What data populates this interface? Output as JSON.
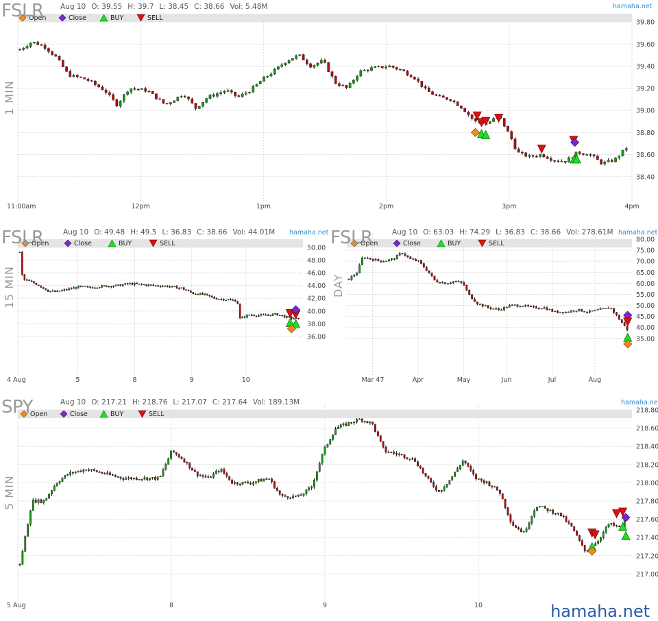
{
  "watermark": "hamaha.net",
  "legend": {
    "open": "Open",
    "close": "Close",
    "buy": "BUY",
    "sell": "SELL",
    "colors": {
      "open": "#f08c1e",
      "close": "#7a28c8",
      "buy": "#22dd22",
      "sell": "#dd1010"
    }
  },
  "panels": {
    "p1": {
      "symbol": "FSLR",
      "timeframe": "1 MIN",
      "brand": "hamaha.net",
      "ohlc": {
        "date": "Aug 10",
        "o": "O: 39.55",
        "h": "H: 39.7",
        "l": "L: 38.45",
        "c": "C: 38.66",
        "vol": "Vol: 5.48M"
      }
    },
    "p2": {
      "symbol": "FSLR",
      "timeframe": "15 MIN",
      "brand": "hamaha.net",
      "ohlc": {
        "date": "Aug 10",
        "o": "O: 49.48",
        "h": "H: 49.5",
        "l": "L: 36.83",
        "c": "C: 38.66",
        "vol": "Vol: 44.01M"
      }
    },
    "p3": {
      "symbol": "FSLR",
      "timeframe": "DAY",
      "brand": "hamaha.net",
      "ohlc": {
        "date": "Aug 10",
        "o": "O: 63.03",
        "h": "H: 74.29",
        "l": "L: 36.83",
        "c": "C: 38.66",
        "vol": "Vol: 278.61M"
      }
    },
    "p4": {
      "symbol": "SPY",
      "timeframe": "5 MIN",
      "brand": "hamaha.net",
      "ohlc": {
        "date": "Aug 10",
        "o": "O: 217.21",
        "h": "H: 218.76",
        "l": "L: 217.07",
        "c": "C: 217.64",
        "vol": "Vol: 189.13M"
      }
    }
  },
  "chart_data": [
    {
      "id": "p1",
      "type": "candlestick",
      "title": "FSLR 1 MIN",
      "ylim": [
        38.2,
        39.8
      ],
      "yticks": [
        "38.40",
        "38.60",
        "38.80",
        "39.00",
        "39.20",
        "39.40",
        "39.60",
        "39.80"
      ],
      "x_ticks": [
        "11:00am",
        "12pm",
        "1pm",
        "2pm",
        "3pm",
        "4pm"
      ],
      "grid": true,
      "path": [
        [
          0,
          39.55
        ],
        [
          0.02,
          39.62
        ],
        [
          0.04,
          39.58
        ],
        [
          0.06,
          39.48
        ],
        [
          0.08,
          39.32
        ],
        [
          0.11,
          39.28
        ],
        [
          0.14,
          39.18
        ],
        [
          0.16,
          39.05
        ],
        [
          0.18,
          39.2
        ],
        [
          0.21,
          39.18
        ],
        [
          0.24,
          39.05
        ],
        [
          0.27,
          39.15
        ],
        [
          0.29,
          39.02
        ],
        [
          0.31,
          39.12
        ],
        [
          0.34,
          39.18
        ],
        [
          0.36,
          39.12
        ],
        [
          0.38,
          39.18
        ],
        [
          0.4,
          39.28
        ],
        [
          0.42,
          39.36
        ],
        [
          0.44,
          39.45
        ],
        [
          0.46,
          39.5
        ],
        [
          0.48,
          39.4
        ],
        [
          0.5,
          39.45
        ],
        [
          0.52,
          39.25
        ],
        [
          0.54,
          39.2
        ],
        [
          0.56,
          39.35
        ],
        [
          0.58,
          39.38
        ],
        [
          0.61,
          39.4
        ],
        [
          0.63,
          39.36
        ],
        [
          0.65,
          39.3
        ],
        [
          0.67,
          39.18
        ],
        [
          0.69,
          39.12
        ],
        [
          0.71,
          39.1
        ],
        [
          0.73,
          39.02
        ],
        [
          0.75,
          38.9
        ],
        [
          0.77,
          38.88
        ],
        [
          0.79,
          38.95
        ],
        [
          0.81,
          38.75
        ],
        [
          0.82,
          38.62
        ],
        [
          0.84,
          38.58
        ],
        [
          0.86,
          38.6
        ],
        [
          0.88,
          38.55
        ],
        [
          0.9,
          38.54
        ],
        [
          0.92,
          38.62
        ],
        [
          0.94,
          38.6
        ],
        [
          0.96,
          38.52
        ],
        [
          0.98,
          38.55
        ],
        [
          1.0,
          38.66
        ]
      ],
      "markers": [
        {
          "kind": "open",
          "x": 0.745,
          "y": 38.8
        },
        {
          "kind": "sell",
          "x": 0.748,
          "y": 38.95
        },
        {
          "kind": "sell",
          "x": 0.755,
          "y": 38.89
        },
        {
          "kind": "sell",
          "x": 0.762,
          "y": 38.9
        },
        {
          "kind": "buy",
          "x": 0.755,
          "y": 38.79
        },
        {
          "kind": "buy",
          "x": 0.762,
          "y": 38.78
        },
        {
          "kind": "sell",
          "x": 0.783,
          "y": 38.93
        },
        {
          "kind": "sell",
          "x": 0.853,
          "y": 38.65
        },
        {
          "kind": "sell",
          "x": 0.905,
          "y": 38.73
        },
        {
          "kind": "close",
          "x": 0.907,
          "y": 38.71
        },
        {
          "kind": "buy",
          "x": 0.906,
          "y": 38.56
        },
        {
          "kind": "buy",
          "x": 0.91,
          "y": 38.56
        }
      ]
    },
    {
      "id": "p2",
      "type": "candlestick",
      "title": "FSLR 15 MIN",
      "ylim": [
        32.0,
        50.0
      ],
      "yticks": [
        "36.00",
        "38.00",
        "40.00",
        "42.00",
        "44.00",
        "46.00",
        "48.00",
        "50.00"
      ],
      "x_ticks": [
        "4 Aug",
        "5",
        "8",
        "9",
        "10"
      ],
      "grid": true,
      "path": [
        [
          0,
          49.2
        ],
        [
          0.01,
          45.0
        ],
        [
          0.04,
          44.6
        ],
        [
          0.07,
          44.0
        ],
        [
          0.1,
          43.2
        ],
        [
          0.13,
          43.0
        ],
        [
          0.17,
          43.4
        ],
        [
          0.21,
          43.8
        ],
        [
          0.25,
          43.7
        ],
        [
          0.3,
          43.9
        ],
        [
          0.35,
          44.0
        ],
        [
          0.39,
          44.3
        ],
        [
          0.43,
          44.2
        ],
        [
          0.48,
          44.0
        ],
        [
          0.53,
          43.9
        ],
        [
          0.58,
          43.6
        ],
        [
          0.62,
          42.8
        ],
        [
          0.66,
          42.6
        ],
        [
          0.7,
          42.0
        ],
        [
          0.74,
          41.8
        ],
        [
          0.78,
          41.6
        ],
        [
          0.79,
          38.8
        ],
        [
          0.82,
          39.4
        ],
        [
          0.87,
          39.3
        ],
        [
          0.92,
          39.5
        ],
        [
          0.96,
          39.0
        ],
        [
          1.0,
          38.7
        ]
      ],
      "markers": [
        {
          "kind": "sell",
          "x": 0.955,
          "y": 39.6
        },
        {
          "kind": "sell",
          "x": 0.975,
          "y": 39.4
        },
        {
          "kind": "close",
          "x": 0.975,
          "y": 40.2
        },
        {
          "kind": "buy",
          "x": 0.955,
          "y": 38.2
        },
        {
          "kind": "buy",
          "x": 0.975,
          "y": 38.0
        },
        {
          "kind": "open",
          "x": 0.96,
          "y": 37.2
        }
      ]
    },
    {
      "id": "p3",
      "type": "candlestick",
      "title": "FSLR DAY",
      "ylim": [
        25.0,
        80.0
      ],
      "yticks": [
        "35.00",
        "40.00",
        "45.00",
        "50.00",
        "55.00",
        "60.00",
        "65.00",
        "70.00",
        "75.00",
        "80.00"
      ],
      "x_ticks": [
        "Mar 47",
        "Apr",
        "May",
        "Jun",
        "Jul",
        "Aug"
      ],
      "grid": true,
      "path": [
        [
          0,
          62
        ],
        [
          0.03,
          65
        ],
        [
          0.05,
          72
        ],
        [
          0.08,
          71
        ],
        [
          0.12,
          70
        ],
        [
          0.16,
          71
        ],
        [
          0.19,
          74
        ],
        [
          0.22,
          71
        ],
        [
          0.25,
          70
        ],
        [
          0.28,
          66
        ],
        [
          0.31,
          61
        ],
        [
          0.35,
          60
        ],
        [
          0.38,
          61
        ],
        [
          0.41,
          60
        ],
        [
          0.43,
          55
        ],
        [
          0.46,
          51
        ],
        [
          0.5,
          49
        ],
        [
          0.54,
          48
        ],
        [
          0.58,
          50
        ],
        [
          0.62,
          50
        ],
        [
          0.66,
          49
        ],
        [
          0.7,
          49
        ],
        [
          0.74,
          47
        ],
        [
          0.78,
          47
        ],
        [
          0.82,
          48
        ],
        [
          0.86,
          47
        ],
        [
          0.9,
          48
        ],
        [
          0.94,
          49
        ],
        [
          0.97,
          44
        ],
        [
          1.0,
          39
        ]
      ],
      "markers": [
        {
          "kind": "close",
          "x": 0.985,
          "y": 45.5
        },
        {
          "kind": "sell",
          "x": 0.985,
          "y": 42.5
        },
        {
          "kind": "buy",
          "x": 0.985,
          "y": 35.5
        },
        {
          "kind": "open",
          "x": 0.985,
          "y": 32.5
        }
      ]
    },
    {
      "id": "p4",
      "type": "candlestick",
      "title": "SPY 5 MIN",
      "ylim": [
        216.8,
        218.8
      ],
      "yticks": [
        "217.00",
        "217.20",
        "217.40",
        "217.60",
        "217.80",
        "218.00",
        "218.20",
        "218.40",
        "218.60",
        "218.80"
      ],
      "x_ticks": [
        "5 Aug",
        "8",
        "9",
        "10"
      ],
      "grid": true,
      "path": [
        [
          0,
          217.1
        ],
        [
          0.01,
          217.45
        ],
        [
          0.02,
          217.8
        ],
        [
          0.04,
          217.8
        ],
        [
          0.06,
          218.0
        ],
        [
          0.08,
          218.1
        ],
        [
          0.11,
          218.15
        ],
        [
          0.14,
          218.1
        ],
        [
          0.17,
          218.05
        ],
        [
          0.2,
          218.05
        ],
        [
          0.23,
          218.05
        ],
        [
          0.25,
          218.35
        ],
        [
          0.27,
          218.25
        ],
        [
          0.29,
          218.1
        ],
        [
          0.31,
          218.05
        ],
        [
          0.33,
          218.15
        ],
        [
          0.35,
          218.0
        ],
        [
          0.38,
          218.0
        ],
        [
          0.41,
          218.05
        ],
        [
          0.43,
          217.85
        ],
        [
          0.46,
          217.85
        ],
        [
          0.48,
          217.95
        ],
        [
          0.5,
          218.35
        ],
        [
          0.52,
          218.6
        ],
        [
          0.54,
          218.65
        ],
        [
          0.56,
          218.7
        ],
        [
          0.58,
          218.65
        ],
        [
          0.6,
          218.35
        ],
        [
          0.63,
          218.3
        ],
        [
          0.65,
          218.25
        ],
        [
          0.67,
          218.05
        ],
        [
          0.69,
          217.9
        ],
        [
          0.71,
          218.05
        ],
        [
          0.73,
          218.25
        ],
        [
          0.75,
          218.05
        ],
        [
          0.77,
          218.0
        ],
        [
          0.79,
          217.9
        ],
        [
          0.81,
          217.55
        ],
        [
          0.83,
          217.45
        ],
        [
          0.85,
          217.75
        ],
        [
          0.87,
          217.7
        ],
        [
          0.89,
          217.65
        ],
        [
          0.91,
          217.5
        ],
        [
          0.93,
          217.25
        ],
        [
          0.95,
          217.35
        ],
        [
          0.97,
          217.55
        ],
        [
          0.99,
          217.5
        ],
        [
          1.0,
          217.64
        ]
      ],
      "markers": [
        {
          "kind": "sell",
          "x": 0.935,
          "y": 217.45
        },
        {
          "kind": "sell",
          "x": 0.94,
          "y": 217.43
        },
        {
          "kind": "buy",
          "x": 0.935,
          "y": 217.3
        },
        {
          "kind": "open",
          "x": 0.935,
          "y": 217.25
        },
        {
          "kind": "sell",
          "x": 0.975,
          "y": 217.66
        },
        {
          "kind": "sell",
          "x": 0.985,
          "y": 217.68
        },
        {
          "kind": "close",
          "x": 0.99,
          "y": 217.62
        },
        {
          "kind": "buy",
          "x": 0.985,
          "y": 217.52
        },
        {
          "kind": "buy",
          "x": 0.99,
          "y": 217.42
        }
      ]
    }
  ]
}
